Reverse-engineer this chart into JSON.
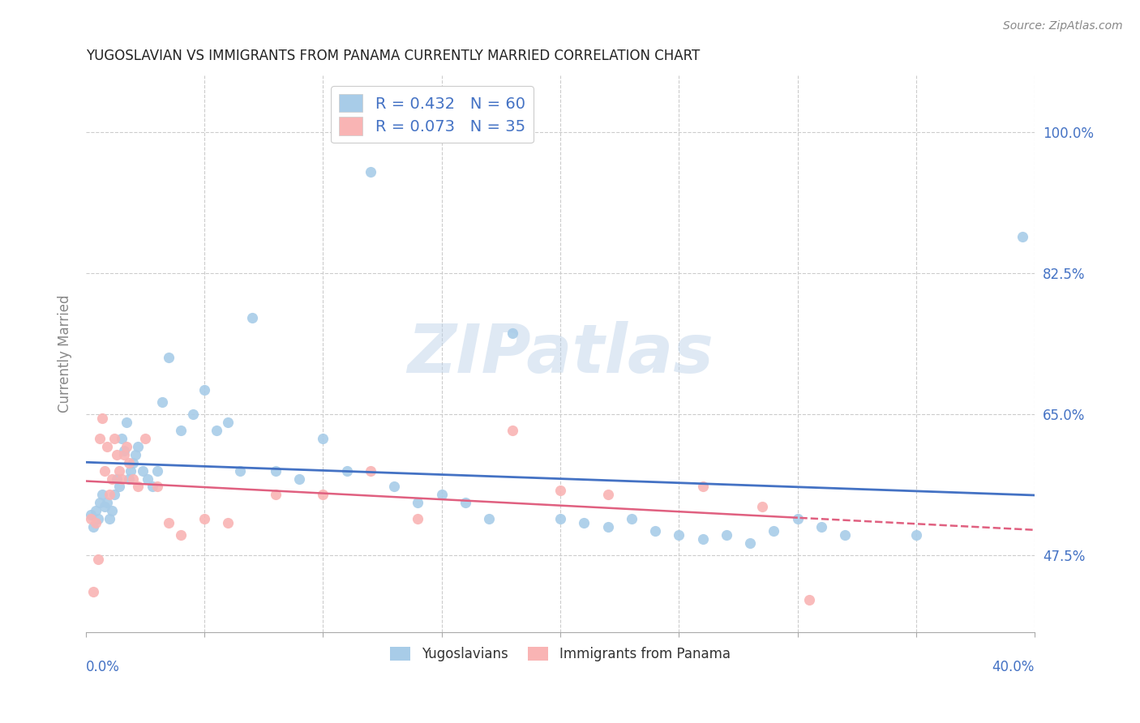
{
  "title": "YUGOSLAVIAN VS IMMIGRANTS FROM PANAMA CURRENTLY MARRIED CORRELATION CHART",
  "source": "Source: ZipAtlas.com",
  "ylabel": "Currently Married",
  "ytick_vals": [
    47.5,
    65.0,
    82.5,
    100.0
  ],
  "ytick_labels": [
    "47.5%",
    "65.0%",
    "82.5%",
    "100.0%"
  ],
  "xmin": 0.0,
  "xmax": 40.0,
  "ymin": 38.0,
  "ymax": 107.0,
  "blue_R": 0.432,
  "blue_N": 60,
  "pink_R": 0.073,
  "pink_N": 35,
  "blue_color": "#a8cce8",
  "pink_color": "#f9b4b4",
  "blue_line_color": "#4472c4",
  "pink_line_color": "#e06080",
  "watermark": "ZIPatlas",
  "legend_label_blue": "Yugoslavians",
  "legend_label_pink": "Immigrants from Panama",
  "blue_x": [
    0.2,
    0.3,
    0.4,
    0.5,
    0.6,
    0.7,
    0.8,
    0.9,
    1.0,
    1.1,
    1.2,
    1.3,
    1.4,
    1.5,
    1.6,
    1.7,
    1.8,
    1.9,
    2.0,
    2.1,
    2.2,
    2.4,
    2.6,
    2.8,
    3.0,
    3.2,
    3.5,
    4.0,
    4.5,
    5.0,
    5.5,
    6.0,
    6.5,
    7.0,
    8.0,
    9.0,
    10.0,
    11.0,
    12.0,
    13.0,
    14.0,
    15.0,
    16.0,
    17.0,
    18.0,
    20.0,
    21.0,
    22.0,
    23.0,
    24.0,
    25.0,
    26.0,
    27.0,
    28.0,
    29.0,
    30.0,
    31.0,
    32.0,
    35.0,
    39.5
  ],
  "blue_y": [
    52.5,
    51.0,
    53.0,
    52.0,
    54.0,
    55.0,
    53.5,
    54.0,
    52.0,
    53.0,
    55.0,
    57.0,
    56.0,
    62.0,
    60.5,
    64.0,
    57.0,
    58.0,
    59.0,
    60.0,
    61.0,
    58.0,
    57.0,
    56.0,
    58.0,
    66.5,
    72.0,
    63.0,
    65.0,
    68.0,
    63.0,
    64.0,
    58.0,
    77.0,
    58.0,
    57.0,
    62.0,
    58.0,
    95.0,
    56.0,
    54.0,
    55.0,
    54.0,
    52.0,
    75.0,
    52.0,
    51.5,
    51.0,
    52.0,
    50.5,
    50.0,
    49.5,
    50.0,
    49.0,
    50.5,
    52.0,
    51.0,
    50.0,
    50.0,
    87.0
  ],
  "pink_x": [
    0.2,
    0.3,
    0.4,
    0.5,
    0.6,
    0.7,
    0.8,
    0.9,
    1.0,
    1.1,
    1.2,
    1.3,
    1.4,
    1.5,
    1.6,
    1.7,
    1.8,
    2.0,
    2.2,
    2.5,
    3.0,
    3.5,
    4.0,
    5.0,
    6.0,
    8.0,
    10.0,
    12.0,
    14.0,
    18.0,
    20.0,
    22.0,
    26.0,
    28.5,
    30.5
  ],
  "pink_y": [
    52.0,
    43.0,
    51.5,
    47.0,
    62.0,
    64.5,
    58.0,
    61.0,
    55.0,
    57.0,
    62.0,
    60.0,
    58.0,
    57.0,
    60.0,
    61.0,
    59.0,
    57.0,
    56.0,
    62.0,
    56.0,
    51.5,
    50.0,
    52.0,
    51.5,
    55.0,
    55.0,
    58.0,
    52.0,
    63.0,
    55.5,
    55.0,
    56.0,
    53.5,
    42.0
  ]
}
